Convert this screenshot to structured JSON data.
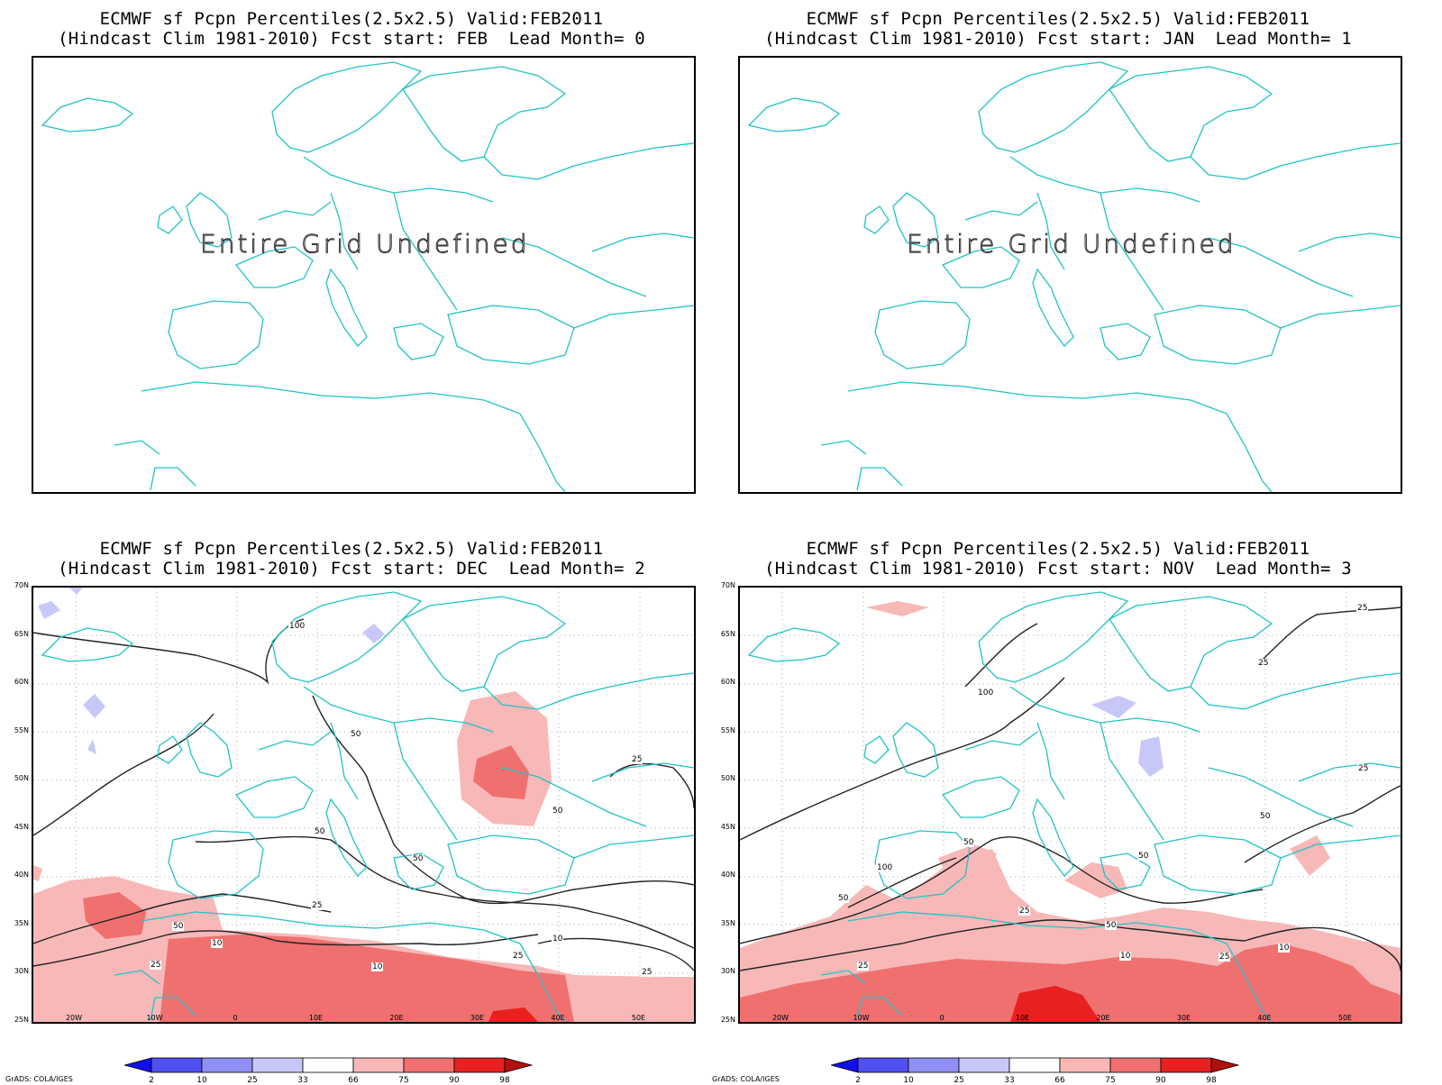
{
  "panels": [
    {
      "title1": "ECMWF sf Pcpn Percentiles(2.5x2.5) Valid:FEB2011",
      "title2": "(Hindcast Clim 1981-2010) Fcst start: FEB  Lead Month= 0",
      "undefined_text": "Entire Grid Undefined",
      "has_data": false
    },
    {
      "title1": "ECMWF sf Pcpn Percentiles(2.5x2.5) Valid:FEB2011",
      "title2": "(Hindcast Clim 1981-2010) Fcst start: JAN  Lead Month= 1",
      "undefined_text": "Entire Grid Undefined",
      "has_data": false
    },
    {
      "title1": "ECMWF sf Pcpn Percentiles(2.5x2.5) Valid:FEB2011",
      "title2": "(Hindcast Clim 1981-2010) Fcst start: DEC  Lead Month= 2",
      "has_data": true,
      "contour_labels": [
        "100",
        "50",
        "50",
        "50",
        "50",
        "25",
        "25",
        "25",
        "10",
        "10",
        "10",
        "25",
        "50",
        "25"
      ]
    },
    {
      "title1": "ECMWF sf Pcpn Percentiles(2.5x2.5) Valid:FEB2011",
      "title2": "(Hindcast Clim 1981-2010) Fcst start: NOV  Lead Month= 3",
      "has_data": true,
      "contour_labels": [
        "25",
        "25",
        "100",
        "25",
        "50",
        "50",
        "50",
        "100",
        "50",
        "25",
        "50",
        "10",
        "25",
        "25",
        "10"
      ]
    }
  ],
  "axes": {
    "lat_labels": [
      "70N",
      "65N",
      "60N",
      "55N",
      "50N",
      "45N",
      "40N",
      "35N",
      "30N",
      "25N"
    ],
    "lon_labels": [
      "20W",
      "10W",
      "0",
      "10E",
      "20E",
      "30E",
      "40E",
      "50E"
    ]
  },
  "legend": {
    "labels": [
      "2",
      "10",
      "25",
      "33",
      "66",
      "75",
      "90",
      "98"
    ],
    "colors": [
      "#1010e8",
      "#5050f0",
      "#9090f4",
      "#c8c8f8",
      "#ffffff",
      "#f8b8b8",
      "#f07070",
      "#e82020",
      "#b01010"
    ]
  },
  "credit": "GrADS: COLA/IGES"
}
